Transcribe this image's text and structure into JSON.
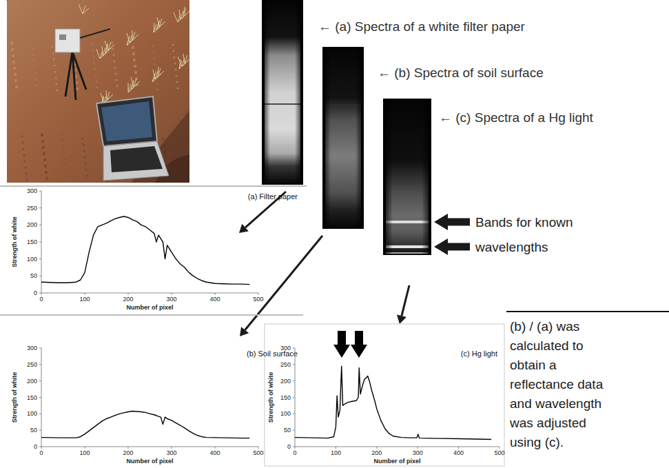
{
  "chart_data": [
    {
      "type": "line",
      "title": "(a) Filter paper",
      "x_label": "Number of pixel",
      "y_label": "Strength of white",
      "color": "#000000",
      "x": [
        0,
        20,
        40,
        60,
        80,
        90,
        100,
        110,
        120,
        130,
        140,
        150,
        160,
        170,
        180,
        190,
        200,
        210,
        220,
        230,
        240,
        250,
        260,
        265,
        270,
        275,
        280,
        285,
        290,
        300,
        310,
        320,
        330,
        340,
        350,
        360,
        370,
        380,
        400,
        420,
        440,
        460,
        480
      ],
      "values": [
        32,
        31,
        30,
        30,
        32,
        38,
        60,
        120,
        170,
        195,
        200,
        205,
        212,
        218,
        222,
        225,
        222,
        215,
        210,
        200,
        195,
        185,
        175,
        150,
        170,
        160,
        150,
        100,
        140,
        120,
        100,
        85,
        75,
        60,
        50,
        42,
        36,
        32,
        28,
        27,
        26,
        26,
        25
      ],
      "xlim": [
        0,
        500
      ],
      "xticks": [
        0,
        100,
        200,
        300,
        400,
        500
      ],
      "ylim": [
        0,
        300
      ],
      "yticks": [
        0,
        50,
        100,
        150,
        200,
        250,
        300
      ]
    },
    {
      "type": "line",
      "title": "(b) Soil surface",
      "x_label": "Number of pixel",
      "y_label": "Strength of white",
      "color": "#000000",
      "x": [
        0,
        40,
        80,
        90,
        100,
        110,
        120,
        130,
        140,
        150,
        160,
        170,
        180,
        190,
        200,
        210,
        220,
        230,
        240,
        250,
        260,
        270,
        275,
        280,
        285,
        290,
        300,
        310,
        320,
        330,
        340,
        350,
        360,
        370,
        380,
        420,
        460,
        480
      ],
      "values": [
        28,
        27,
        27,
        30,
        38,
        48,
        58,
        68,
        78,
        85,
        90,
        95,
        100,
        103,
        106,
        108,
        107,
        106,
        104,
        100,
        97,
        92,
        90,
        68,
        90,
        85,
        80,
        72,
        65,
        57,
        48,
        40,
        34,
        30,
        28,
        27,
        26,
        26
      ],
      "xlim": [
        0,
        500
      ],
      "xticks": [
        0,
        100,
        200,
        300,
        400,
        500
      ],
      "ylim": [
        0,
        300
      ],
      "yticks": [
        0,
        50,
        100,
        150,
        200,
        250,
        300
      ]
    },
    {
      "type": "line",
      "title": "(c) Hg light",
      "x_label": "Number of pixel",
      "y_label": "Strength of white",
      "color": "#000000",
      "x": [
        0,
        40,
        80,
        95,
        100,
        103,
        106,
        110,
        114,
        117,
        122,
        130,
        140,
        150,
        155,
        157,
        160,
        165,
        170,
        175,
        178,
        182,
        188,
        195,
        200,
        210,
        220,
        230,
        240,
        260,
        280,
        298,
        301,
        304,
        350,
        400,
        480
      ],
      "values": [
        28,
        27,
        26,
        30,
        60,
        155,
        90,
        110,
        245,
        125,
        130,
        135,
        138,
        140,
        150,
        240,
        160,
        185,
        205,
        210,
        215,
        200,
        170,
        140,
        115,
        80,
        55,
        40,
        32,
        28,
        27,
        27,
        38,
        26,
        25,
        24,
        22
      ],
      "xlim": [
        0,
        500
      ],
      "xticks": [
        0,
        100,
        200,
        300,
        400,
        500
      ],
      "ylim": [
        0,
        300
      ],
      "yticks": [
        0,
        50,
        100,
        150,
        200,
        250,
        300
      ]
    }
  ],
  "spectra_labels": [
    "← (a) Spectra of a white filter paper",
    "← (b) Spectra of soil surface",
    "← (c) Spectra of a Hg light"
  ],
  "bands_label": [
    "Bands for known",
    "wavelengths"
  ],
  "note_lines": [
    "(b) / (a) was",
    "calculated to",
    "obtain a",
    "reflectance data",
    "and wavelength",
    "was adjusted",
    "using (c)."
  ]
}
